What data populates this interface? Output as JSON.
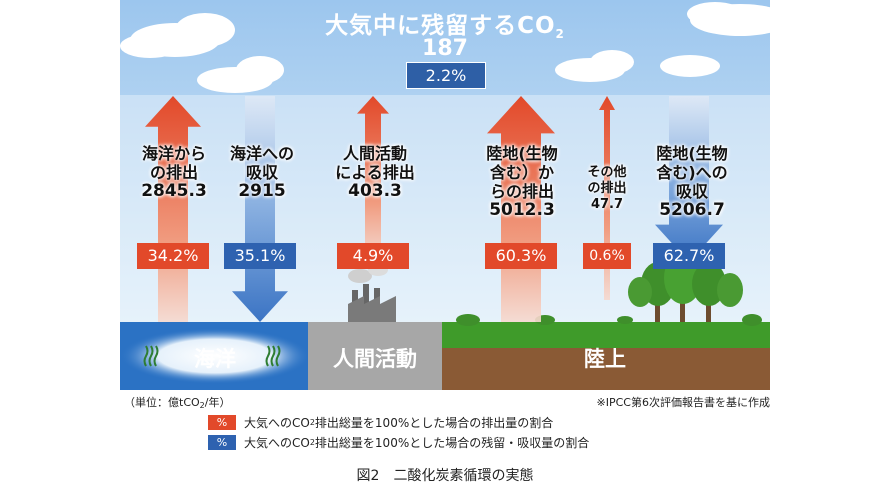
{
  "title": {
    "main": "大気中に残留するCO",
    "sub": "2"
  },
  "atmosphere": {
    "value": "187",
    "percent": "2.2%"
  },
  "flows": [
    {
      "id": "ocean-emission",
      "lines": [
        "海洋から",
        "の排出"
      ],
      "value": "2845.3",
      "percent": "34.2%",
      "direction": "up"
    },
    {
      "id": "ocean-absorption",
      "lines": [
        "海洋への",
        "吸収"
      ],
      "value": "2915",
      "percent": "35.1%",
      "direction": "down"
    },
    {
      "id": "human-emission",
      "lines": [
        "人間活動",
        "による排出"
      ],
      "value": "403.3",
      "percent": "4.9%",
      "direction": "up"
    },
    {
      "id": "land-emission",
      "lines": [
        "陸地(生物",
        "含む）か",
        "らの排出"
      ],
      "value": "5012.3",
      "percent": "60.3%",
      "direction": "up"
    },
    {
      "id": "other-emission",
      "lines": [
        "その他",
        "の排出"
      ],
      "value": "47.7",
      "percent": "0.6%",
      "direction": "up"
    },
    {
      "id": "land-absorption",
      "lines": [
        "陸地(生物",
        "含む)への",
        "吸収"
      ],
      "value": "5206.7",
      "percent": "62.7%",
      "direction": "down"
    }
  ],
  "bands": {
    "ocean": "海洋",
    "human": "人間活動",
    "land": "陸上"
  },
  "unit_note": {
    "prefix": "（単位：億tCO",
    "sub": "2",
    "suffix": "/年）"
  },
  "source_note": "※IPCC第6次評価報告書を基に作成",
  "legend": [
    {
      "swatch": "%",
      "color": "#e2492a",
      "pre": "大気へのCO",
      "sub": "2",
      "post": "排出総量を100%とした場合の排出量の割合"
    },
    {
      "swatch": "%",
      "color": "#2e62b0",
      "pre": "大気へのCO",
      "sub": "2",
      "post": "排出総量を100%とした場合の残留・吸収量の割合"
    }
  ],
  "caption": "図2　二酸化炭素循環の実態",
  "colors": {
    "sky": "#aed0f0",
    "emission": "#e2492a",
    "absorption": "#2e62b0",
    "ocean": "#2b72c4",
    "human": "#a7a7a7",
    "land_grass": "#3f9b2a",
    "soil": "#8a5a35"
  }
}
